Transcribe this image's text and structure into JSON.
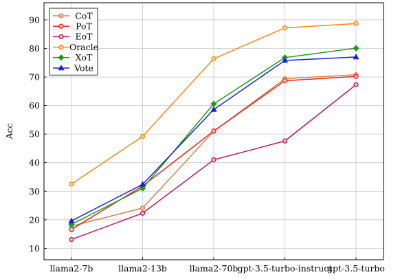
{
  "chart_data": {
    "type": "line",
    "ylabel": "Acc",
    "xlabel": "",
    "ylim": [
      6,
      96
    ],
    "yticks": [
      10,
      20,
      30,
      40,
      50,
      60,
      70,
      80,
      90
    ],
    "grid": true,
    "legend_position": "top-left",
    "categories": [
      "llama2-7b",
      "llama2-13b",
      "llama2-70b",
      "gpt-3.5-turbo-instruct",
      "gpt-3.5-turbo"
    ],
    "series": [
      {
        "name": "CoT",
        "color": "#c8884a",
        "marker": "circle",
        "values": [
          17.8,
          24.1,
          51.0,
          69.4,
          70.8
        ]
      },
      {
        "name": "PoT",
        "color": "#e8221c",
        "marker": "circle",
        "values": [
          16.6,
          31.8,
          51.1,
          68.7,
          70.2
        ]
      },
      {
        "name": "EoT",
        "color": "#b8185a",
        "marker": "circle",
        "values": [
          13.1,
          22.3,
          41.0,
          47.6,
          67.3
        ]
      },
      {
        "name": "Oracle",
        "color": "#f08a14",
        "marker": "circle",
        "values": [
          32.5,
          49.2,
          76.4,
          87.2,
          88.7
        ]
      },
      {
        "name": "XoT",
        "color": "#1e9a1e",
        "marker": "diamond",
        "values": [
          18.4,
          31.0,
          60.6,
          76.8,
          80.1
        ]
      },
      {
        "name": "Vote",
        "color": "#1a20d8",
        "marker": "triangle",
        "values": [
          19.6,
          32.4,
          58.6,
          75.8,
          77.0
        ]
      }
    ]
  }
}
